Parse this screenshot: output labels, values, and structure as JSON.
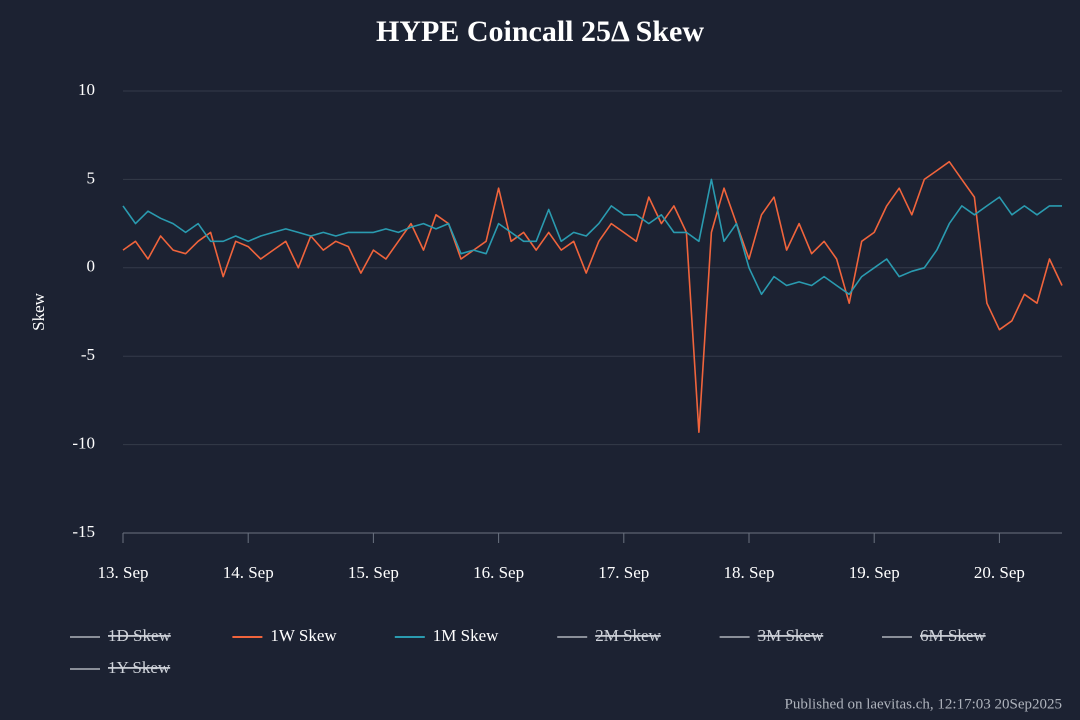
{
  "chart_data": {
    "type": "line",
    "title": "HYPE Coincall 25Δ Skew",
    "y_label": "Skew",
    "footer": "Published on laevitas.ch, 12:17:03 20Sep2025",
    "x": [
      13.0,
      13.1,
      13.2,
      13.3,
      13.4,
      13.5,
      13.6,
      13.7,
      13.8,
      13.9,
      14.0,
      14.1,
      14.2,
      14.3,
      14.4,
      14.5,
      14.6,
      14.7,
      14.8,
      14.9,
      15.0,
      15.1,
      15.2,
      15.3,
      15.4,
      15.5,
      15.6,
      15.7,
      15.8,
      15.9,
      16.0,
      16.1,
      16.2,
      16.3,
      16.4,
      16.5,
      16.6,
      16.7,
      16.8,
      16.9,
      17.0,
      17.1,
      17.2,
      17.3,
      17.4,
      17.5,
      17.6,
      17.7,
      17.8,
      17.9,
      18.0,
      18.1,
      18.2,
      18.3,
      18.4,
      18.5,
      18.6,
      18.7,
      18.8,
      18.9,
      19.0,
      19.1,
      19.2,
      19.3,
      19.4,
      19.5,
      19.6,
      19.7,
      19.8,
      19.9,
      20.0,
      20.1,
      20.2,
      20.3,
      20.4,
      20.5
    ],
    "series": [
      {
        "name": "1D Skew",
        "color": "#8a8f99",
        "hidden": true
      },
      {
        "name": "1W Skew",
        "color": "#f0643c",
        "values": [
          1,
          1.5,
          0.5,
          1.8,
          1,
          0.8,
          1.5,
          2,
          -0.5,
          1.5,
          1.2,
          0.5,
          1,
          1.5,
          0,
          1.8,
          1,
          1.5,
          1.2,
          -0.3,
          1,
          0.5,
          1.5,
          2.5,
          1,
          3,
          2.5,
          0.5,
          1,
          1.5,
          4.5,
          1.5,
          2,
          1,
          2,
          1,
          1.5,
          -0.3,
          1.5,
          2.5,
          2,
          1.5,
          4,
          2.5,
          3.5,
          2,
          -9.3,
          2,
          4.5,
          2.5,
          0.5,
          3,
          4,
          1,
          2.5,
          0.8,
          1.5,
          0.5,
          -2,
          1.5,
          2,
          3.5,
          4.5,
          3,
          5,
          5.5,
          6,
          5,
          4,
          -2,
          -3.5,
          -3,
          -1.5,
          -2,
          0.5,
          -1
        ]
      },
      {
        "name": "1M Skew",
        "color": "#2a9bb0",
        "values": [
          3.5,
          2.5,
          3.2,
          2.8,
          2.5,
          2,
          2.5,
          1.5,
          1.5,
          1.8,
          1.5,
          1.8,
          2,
          2.2,
          2,
          1.8,
          2,
          1.8,
          2,
          2,
          2,
          2.2,
          2,
          2.3,
          2.5,
          2.2,
          2.5,
          0.8,
          1,
          0.8,
          2.5,
          2,
          1.5,
          1.5,
          3.3,
          1.5,
          2,
          1.8,
          2.5,
          3.5,
          3,
          3,
          2.5,
          3,
          2,
          2,
          1.5,
          5,
          1.5,
          2.5,
          0,
          -1.5,
          -0.5,
          -1,
          -0.8,
          -1,
          -0.5,
          -1,
          -1.5,
          -0.5,
          0,
          0.5,
          -0.5,
          -0.2,
          0,
          1,
          2.5,
          3.5,
          3,
          3.5,
          4,
          3,
          3.5,
          3,
          3.5,
          3.5
        ]
      },
      {
        "name": "2M Skew",
        "color": "#8a8f99",
        "hidden": true
      },
      {
        "name": "3M Skew",
        "color": "#8a8f99",
        "hidden": true
      },
      {
        "name": "6M Skew",
        "color": "#8a8f99",
        "hidden": true
      },
      {
        "name": "1Y Skew",
        "color": "#8a8f99",
        "hidden": true
      }
    ],
    "xlim": [
      13,
      20.5
    ],
    "xticks": [
      {
        "value": 13,
        "label": "13. Sep"
      },
      {
        "value": 14,
        "label": "14. Sep"
      },
      {
        "value": 15,
        "label": "15. Sep"
      },
      {
        "value": 16,
        "label": "16. Sep"
      },
      {
        "value": 17,
        "label": "17. Sep"
      },
      {
        "value": 18,
        "label": "18. Sep"
      },
      {
        "value": 19,
        "label": "19. Sep"
      },
      {
        "value": 20,
        "label": "20. Sep"
      }
    ],
    "ylim": [
      -15,
      10
    ],
    "yticks": [
      -15,
      -10,
      -5,
      0,
      5,
      10
    ],
    "grid": true
  }
}
